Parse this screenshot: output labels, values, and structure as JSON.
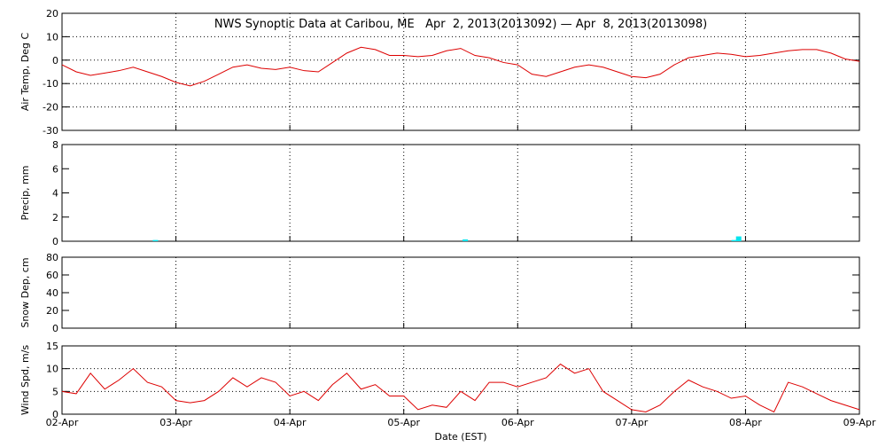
{
  "chart_data": [
    {
      "type": "line",
      "title": "NWS Synoptic Data at Caribou, ME   Apr  2, 2013(2013092) — Apr  8, 2013(2013098)",
      "ylabel": "Air Temp, Deg C",
      "ylim": [
        -30,
        20
      ],
      "yticks": [
        -30,
        -20,
        -10,
        0,
        10,
        20
      ],
      "xlim": [
        0,
        7
      ],
      "xticks": [
        0,
        1,
        2,
        3,
        4,
        5,
        6,
        7
      ],
      "xgrid": true,
      "ygrid": true,
      "x": [
        0,
        0.125,
        0.25,
        0.375,
        0.5,
        0.625,
        0.75,
        0.875,
        1,
        1.125,
        1.25,
        1.375,
        1.5,
        1.625,
        1.75,
        1.875,
        2,
        2.125,
        2.25,
        2.375,
        2.5,
        2.625,
        2.75,
        2.875,
        3,
        3.125,
        3.25,
        3.375,
        3.5,
        3.625,
        3.75,
        3.875,
        4,
        4.125,
        4.25,
        4.375,
        4.5,
        4.625,
        4.75,
        4.875,
        5,
        5.125,
        5.25,
        5.375,
        5.5,
        5.625,
        5.75,
        5.875,
        6,
        6.125,
        6.25,
        6.375,
        6.5,
        6.625,
        6.75,
        6.875,
        7
      ],
      "series": [
        {
          "color": "#dd0000",
          "values": [
            -2,
            -5,
            -6.5,
            -5.5,
            -4.5,
            -3,
            -5,
            -7,
            -9.5,
            -11,
            -9,
            -6,
            -3,
            -2,
            -3.5,
            -4,
            -3,
            -4.5,
            -5,
            -1,
            3,
            5.5,
            4.5,
            2,
            2,
            1.5,
            2,
            4,
            5,
            2,
            1,
            -1,
            -2,
            -6,
            -7,
            -5,
            -3,
            -2,
            -3,
            -5,
            -7,
            -7.5,
            -6,
            -2,
            1,
            2,
            3,
            2.5,
            1.5,
            2,
            3,
            4,
            4.5,
            4.5,
            3,
            0.5,
            -0.5
          ]
        }
      ]
    },
    {
      "type": "bar",
      "ylabel": "Precip, mm",
      "ylim": [
        0,
        8
      ],
      "yticks": [
        0,
        2,
        4,
        6,
        8
      ],
      "xlim": [
        0,
        7
      ],
      "xticks": [
        0,
        1,
        2,
        3,
        4,
        5,
        6,
        7
      ],
      "xgrid": true,
      "ygrid": false,
      "x": [
        0.82,
        3.54,
        5.9,
        5.94
      ],
      "series": [
        {
          "color": "#00e5ee",
          "values": [
            0.1,
            0.15,
            0.1,
            0.4
          ]
        }
      ]
    },
    {
      "type": "line",
      "ylabel": "Snow Dep, cm",
      "ylim": [
        0,
        80
      ],
      "yticks": [
        0,
        20,
        40,
        60,
        80
      ],
      "xlim": [
        0,
        7
      ],
      "xticks": [
        0,
        1,
        2,
        3,
        4,
        5,
        6,
        7
      ],
      "xgrid": true,
      "ygrid": false
    },
    {
      "type": "line",
      "ylabel": "Wind Spd, m/s",
      "xlabel": "Date (EST)",
      "ylim": [
        0,
        15
      ],
      "yticks": [
        0,
        5,
        10,
        15
      ],
      "xlim": [
        0,
        7
      ],
      "xticks": [
        {
          "value": 0,
          "label": "02-Apr"
        },
        {
          "value": 1,
          "label": "03-Apr"
        },
        {
          "value": 2,
          "label": "04-Apr"
        },
        {
          "value": 3,
          "label": "05-Apr"
        },
        {
          "value": 4,
          "label": "06-Apr"
        },
        {
          "value": 5,
          "label": "07-Apr"
        },
        {
          "value": 6,
          "label": "08-Apr"
        },
        {
          "value": 7,
          "label": "09-Apr"
        }
      ],
      "xgrid": true,
      "ygrid": true,
      "x": [
        0,
        0.125,
        0.25,
        0.375,
        0.5,
        0.625,
        0.75,
        0.875,
        1,
        1.125,
        1.25,
        1.375,
        1.5,
        1.625,
        1.75,
        1.875,
        2,
        2.125,
        2.25,
        2.375,
        2.5,
        2.625,
        2.75,
        2.875,
        3,
        3.125,
        3.25,
        3.375,
        3.5,
        3.625,
        3.75,
        3.875,
        4,
        4.125,
        4.25,
        4.375,
        4.5,
        4.625,
        4.75,
        4.875,
        5,
        5.125,
        5.25,
        5.375,
        5.5,
        5.625,
        5.75,
        5.875,
        6,
        6.125,
        6.25,
        6.375,
        6.5,
        6.625,
        6.75,
        6.875,
        7
      ],
      "series": [
        {
          "color": "#dd0000",
          "values": [
            5,
            4.5,
            9,
            5.5,
            7.5,
            10,
            7,
            6,
            3,
            2.5,
            3,
            5,
            8,
            6,
            8,
            7,
            4,
            5,
            3,
            6.5,
            9,
            5.5,
            6.5,
            4,
            4,
            1,
            2,
            1.5,
            5,
            3,
            7,
            7,
            6,
            7,
            8,
            11,
            9,
            10,
            5,
            3,
            1,
            0.5,
            2,
            5,
            7.5,
            6,
            5,
            3.5,
            4,
            2,
            0.5,
            7,
            6,
            4.5,
            3,
            2,
            1
          ]
        }
      ]
    }
  ]
}
